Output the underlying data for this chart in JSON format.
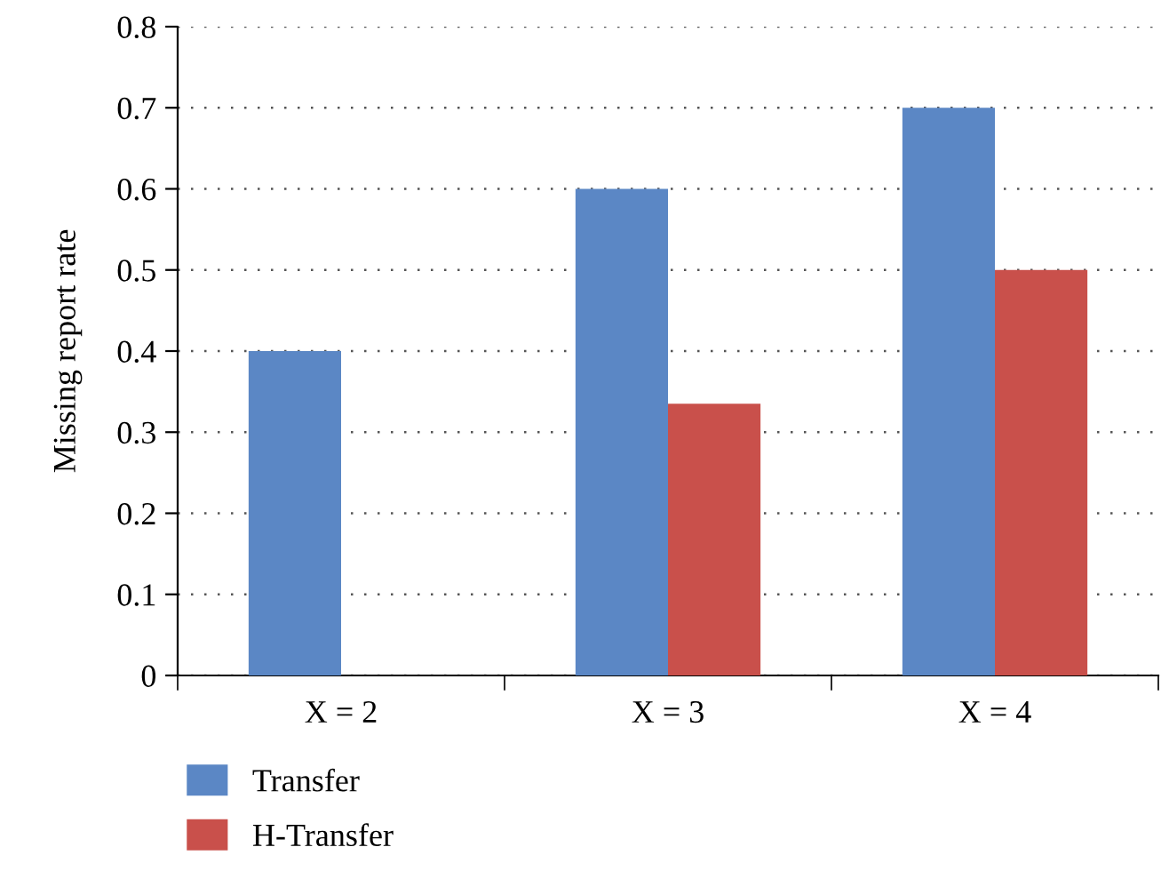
{
  "chart_data": {
    "type": "bar",
    "ylabel": "Missing report rate",
    "categories": [
      "X = 2",
      "X = 3",
      "X = 4"
    ],
    "series": [
      {
        "name": "Transfer",
        "color": "#5b87c5",
        "values": [
          0.4,
          0.6,
          0.7
        ]
      },
      {
        "name": "H-Transfer",
        "color": "#c9504b",
        "values": [
          null,
          0.335,
          0.5
        ]
      }
    ],
    "ylim": [
      0,
      0.8
    ],
    "yticks": [
      0,
      {
        "value": 0.1,
        "label": "0.1"
      },
      0.2,
      0.3,
      0.4,
      0.5,
      0.6,
      0.7,
      0.8
    ],
    "grid": "y",
    "legend": "bottom left"
  }
}
